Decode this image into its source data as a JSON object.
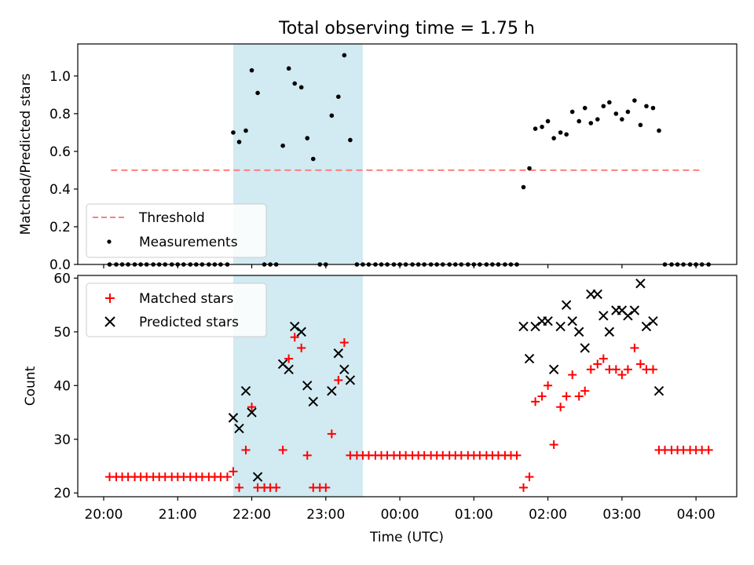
{
  "figure": {
    "title": "Total observing time = 1.75 h",
    "xlabel": "Time (UTC)",
    "xticks": [
      "20:00",
      "21:00",
      "22:00",
      "23:00",
      "00:00",
      "01:00",
      "02:00",
      "03:00",
      "04:00"
    ]
  },
  "colors": {
    "threshold": "#ff7f7f",
    "measurement": "#000000",
    "matched": "#ff0000",
    "predicted": "#000000",
    "shade": "#add8e6"
  },
  "chart_data": [
    {
      "type": "scatter",
      "ylabel": "Matched/Predicted stars",
      "x_unit": "hours since 20:00 UTC",
      "xlim": [
        -0.35,
        8.55
      ],
      "ylim": [
        0,
        1.17
      ],
      "yticks": [
        "0.0",
        "0.2",
        "0.4",
        "0.6",
        "0.8",
        "1.0"
      ],
      "shaded_region": [
        1.75,
        3.5
      ],
      "legend": {
        "position": "lower-left",
        "entries": [
          "Threshold",
          "Measurements"
        ]
      },
      "threshold": {
        "name": "Threshold",
        "value": 0.5,
        "x_range": [
          0.1,
          8.1
        ]
      },
      "series": [
        {
          "name": "Measurements",
          "points": [
            [
              0.08,
              0
            ],
            [
              0.17,
              0
            ],
            [
              0.25,
              0
            ],
            [
              0.33,
              0
            ],
            [
              0.42,
              0
            ],
            [
              0.5,
              0
            ],
            [
              0.58,
              0
            ],
            [
              0.67,
              0
            ],
            [
              0.75,
              0
            ],
            [
              0.83,
              0
            ],
            [
              0.92,
              0
            ],
            [
              1.0,
              0
            ],
            [
              1.08,
              0
            ],
            [
              1.17,
              0
            ],
            [
              1.25,
              0
            ],
            [
              1.33,
              0
            ],
            [
              1.42,
              0
            ],
            [
              1.5,
              0
            ],
            [
              1.58,
              0
            ],
            [
              1.67,
              0
            ],
            [
              1.75,
              0.7
            ],
            [
              1.83,
              0.65
            ],
            [
              1.92,
              0.71
            ],
            [
              2.0,
              1.03
            ],
            [
              2.08,
              0.91
            ],
            [
              2.17,
              0
            ],
            [
              2.25,
              0
            ],
            [
              2.33,
              0
            ],
            [
              2.42,
              0.63
            ],
            [
              2.5,
              1.04
            ],
            [
              2.58,
              0.96
            ],
            [
              2.67,
              0.94
            ],
            [
              2.75,
              0.67
            ],
            [
              2.83,
              0.56
            ],
            [
              2.92,
              0
            ],
            [
              3.0,
              0
            ],
            [
              3.08,
              0.79
            ],
            [
              3.17,
              0.89
            ],
            [
              3.25,
              1.11
            ],
            [
              3.33,
              0.66
            ],
            [
              3.42,
              0
            ],
            [
              3.5,
              0
            ],
            [
              3.58,
              0
            ],
            [
              3.67,
              0
            ],
            [
              3.75,
              0
            ],
            [
              3.83,
              0
            ],
            [
              3.92,
              0
            ],
            [
              4.0,
              0
            ],
            [
              4.08,
              0
            ],
            [
              4.17,
              0
            ],
            [
              4.25,
              0
            ],
            [
              4.33,
              0
            ],
            [
              4.42,
              0
            ],
            [
              4.5,
              0
            ],
            [
              4.58,
              0
            ],
            [
              4.67,
              0
            ],
            [
              4.75,
              0
            ],
            [
              4.83,
              0
            ],
            [
              4.92,
              0
            ],
            [
              5.0,
              0
            ],
            [
              5.08,
              0
            ],
            [
              5.17,
              0
            ],
            [
              5.25,
              0
            ],
            [
              5.33,
              0
            ],
            [
              5.42,
              0
            ],
            [
              5.5,
              0
            ],
            [
              5.58,
              0
            ],
            [
              5.67,
              0.41
            ],
            [
              5.75,
              0.51
            ],
            [
              5.83,
              0.72
            ],
            [
              5.92,
              0.73
            ],
            [
              6.0,
              0.76
            ],
            [
              6.08,
              0.67
            ],
            [
              6.17,
              0.7
            ],
            [
              6.25,
              0.69
            ],
            [
              6.33,
              0.81
            ],
            [
              6.42,
              0.76
            ],
            [
              6.5,
              0.83
            ],
            [
              6.58,
              0.75
            ],
            [
              6.67,
              0.77
            ],
            [
              6.75,
              0.84
            ],
            [
              6.83,
              0.86
            ],
            [
              6.92,
              0.8
            ],
            [
              7.0,
              0.77
            ],
            [
              7.08,
              0.81
            ],
            [
              7.17,
              0.87
            ],
            [
              7.25,
              0.74
            ],
            [
              7.33,
              0.84
            ],
            [
              7.42,
              0.83
            ],
            [
              7.5,
              0.71
            ],
            [
              7.58,
              0
            ],
            [
              7.67,
              0
            ],
            [
              7.75,
              0
            ],
            [
              7.83,
              0
            ],
            [
              7.92,
              0
            ],
            [
              8.0,
              0
            ],
            [
              8.08,
              0
            ],
            [
              8.17,
              0
            ]
          ]
        }
      ]
    },
    {
      "type": "scatter",
      "ylabel": "Count",
      "x_unit": "hours since 20:00 UTC",
      "xlim": [
        -0.35,
        8.55
      ],
      "ylim": [
        19.3,
        60.5
      ],
      "yticks": [
        "20",
        "30",
        "40",
        "50",
        "60"
      ],
      "shaded_region": [
        1.75,
        3.5
      ],
      "legend": {
        "position": "upper-left",
        "entries": [
          "Matched stars",
          "Predicted stars"
        ]
      },
      "series": [
        {
          "name": "Matched stars",
          "marker": "plus",
          "points": [
            [
              0.08,
              23
            ],
            [
              0.17,
              23
            ],
            [
              0.25,
              23
            ],
            [
              0.33,
              23
            ],
            [
              0.42,
              23
            ],
            [
              0.5,
              23
            ],
            [
              0.58,
              23
            ],
            [
              0.67,
              23
            ],
            [
              0.75,
              23
            ],
            [
              0.83,
              23
            ],
            [
              0.92,
              23
            ],
            [
              1.0,
              23
            ],
            [
              1.08,
              23
            ],
            [
              1.17,
              23
            ],
            [
              1.25,
              23
            ],
            [
              1.33,
              23
            ],
            [
              1.42,
              23
            ],
            [
              1.5,
              23
            ],
            [
              1.58,
              23
            ],
            [
              1.67,
              23
            ],
            [
              1.75,
              24
            ],
            [
              1.83,
              21
            ],
            [
              1.92,
              28
            ],
            [
              2.0,
              36
            ],
            [
              2.08,
              21
            ],
            [
              2.17,
              21
            ],
            [
              2.25,
              21
            ],
            [
              2.33,
              21
            ],
            [
              2.42,
              28
            ],
            [
              2.5,
              45
            ],
            [
              2.58,
              49
            ],
            [
              2.67,
              47
            ],
            [
              2.75,
              27
            ],
            [
              2.83,
              21
            ],
            [
              2.92,
              21
            ],
            [
              3.0,
              21
            ],
            [
              3.08,
              31
            ],
            [
              3.17,
              41
            ],
            [
              3.25,
              48
            ],
            [
              3.33,
              27
            ],
            [
              3.42,
              27
            ],
            [
              3.5,
              27
            ],
            [
              3.58,
              27
            ],
            [
              3.67,
              27
            ],
            [
              3.75,
              27
            ],
            [
              3.83,
              27
            ],
            [
              3.92,
              27
            ],
            [
              4.0,
              27
            ],
            [
              4.08,
              27
            ],
            [
              4.17,
              27
            ],
            [
              4.25,
              27
            ],
            [
              4.33,
              27
            ],
            [
              4.42,
              27
            ],
            [
              4.5,
              27
            ],
            [
              4.58,
              27
            ],
            [
              4.67,
              27
            ],
            [
              4.75,
              27
            ],
            [
              4.83,
              27
            ],
            [
              4.92,
              27
            ],
            [
              5.0,
              27
            ],
            [
              5.08,
              27
            ],
            [
              5.17,
              27
            ],
            [
              5.25,
              27
            ],
            [
              5.33,
              27
            ],
            [
              5.42,
              27
            ],
            [
              5.5,
              27
            ],
            [
              5.58,
              27
            ],
            [
              5.67,
              21
            ],
            [
              5.75,
              23
            ],
            [
              5.83,
              37
            ],
            [
              5.92,
              38
            ],
            [
              6.0,
              40
            ],
            [
              6.08,
              29
            ],
            [
              6.17,
              36
            ],
            [
              6.25,
              38
            ],
            [
              6.33,
              42
            ],
            [
              6.42,
              38
            ],
            [
              6.5,
              39
            ],
            [
              6.58,
              43
            ],
            [
              6.67,
              44
            ],
            [
              6.75,
              45
            ],
            [
              6.83,
              43
            ],
            [
              6.92,
              43
            ],
            [
              7.0,
              42
            ],
            [
              7.08,
              43
            ],
            [
              7.17,
              47
            ],
            [
              7.25,
              44
            ],
            [
              7.33,
              43
            ],
            [
              7.42,
              43
            ],
            [
              7.5,
              28
            ],
            [
              7.58,
              28
            ],
            [
              7.67,
              28
            ],
            [
              7.75,
              28
            ],
            [
              7.83,
              28
            ],
            [
              7.92,
              28
            ],
            [
              8.0,
              28
            ],
            [
              8.08,
              28
            ],
            [
              8.17,
              28
            ]
          ]
        },
        {
          "name": "Predicted stars",
          "marker": "x",
          "points": [
            [
              1.75,
              34
            ],
            [
              1.83,
              32
            ],
            [
              1.92,
              39
            ],
            [
              2.0,
              35
            ],
            [
              2.08,
              23
            ],
            [
              2.42,
              44
            ],
            [
              2.5,
              43
            ],
            [
              2.58,
              51
            ],
            [
              2.67,
              50
            ],
            [
              2.75,
              40
            ],
            [
              2.83,
              37
            ],
            [
              3.08,
              39
            ],
            [
              3.17,
              46
            ],
            [
              3.25,
              43
            ],
            [
              3.33,
              41
            ],
            [
              5.67,
              51
            ],
            [
              5.75,
              45
            ],
            [
              5.83,
              51
            ],
            [
              5.92,
              52
            ],
            [
              6.0,
              52
            ],
            [
              6.08,
              43
            ],
            [
              6.17,
              51
            ],
            [
              6.25,
              55
            ],
            [
              6.33,
              52
            ],
            [
              6.42,
              50
            ],
            [
              6.5,
              47
            ],
            [
              6.58,
              57
            ],
            [
              6.67,
              57
            ],
            [
              6.75,
              53
            ],
            [
              6.83,
              50
            ],
            [
              6.92,
              54
            ],
            [
              7.0,
              54
            ],
            [
              7.08,
              53
            ],
            [
              7.17,
              54
            ],
            [
              7.25,
              59
            ],
            [
              7.33,
              51
            ],
            [
              7.42,
              52
            ],
            [
              7.5,
              39
            ]
          ]
        }
      ]
    }
  ]
}
